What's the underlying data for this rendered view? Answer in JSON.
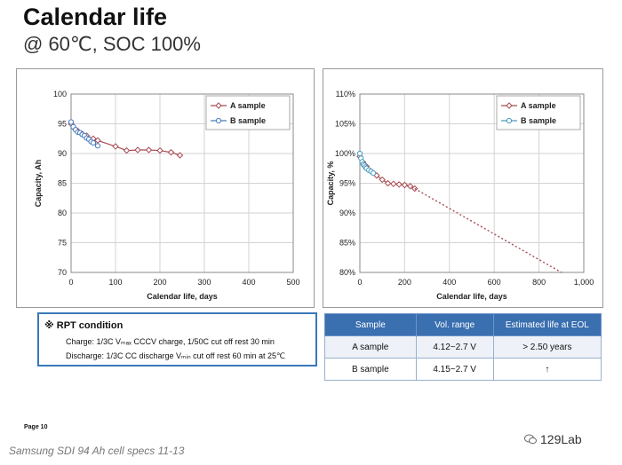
{
  "title": "Calendar life",
  "subtitle": "@ 60℃, SOC 100%",
  "chart_data": [
    {
      "type": "line",
      "title": "",
      "xlabel": "Calendar life, days",
      "ylabel": "Capacity, Ah",
      "xlim": [
        0,
        500
      ],
      "ylim": [
        70,
        100
      ],
      "xticks": [
        "0",
        "100",
        "200",
        "300",
        "400",
        "500"
      ],
      "yticks": [
        "70",
        "75",
        "80",
        "85",
        "90",
        "95",
        "100"
      ],
      "grid": true,
      "legend": "top-right",
      "series": [
        {
          "name": "A sample",
          "color": "#a84b52",
          "marker": "diamond",
          "x": [
            0,
            8,
            15,
            25,
            35,
            50,
            60,
            100,
            125,
            150,
            175,
            200,
            225,
            245
          ],
          "y": [
            95.0,
            94.2,
            93.8,
            93.3,
            93.0,
            92.5,
            92.2,
            91.2,
            90.5,
            90.6,
            90.6,
            90.5,
            90.2,
            89.7
          ]
        },
        {
          "name": "B sample",
          "color": "#4a7cc0",
          "marker": "circle",
          "x": [
            0,
            5,
            10,
            15,
            20,
            25,
            30,
            35,
            40,
            45,
            50,
            60
          ],
          "y": [
            95.3,
            94.5,
            94.0,
            93.6,
            93.5,
            93.2,
            93.0,
            92.6,
            92.4,
            92.0,
            91.8,
            91.3
          ]
        }
      ]
    },
    {
      "type": "line",
      "title": "",
      "xlabel": "Calendar life, days",
      "ylabel": "Capacity, %",
      "xlim": [
        0,
        1000
      ],
      "ylim": [
        80,
        110
      ],
      "xticks": [
        "0",
        "200",
        "400",
        "600",
        "800",
        "1,000"
      ],
      "yticks": [
        "80%",
        "85%",
        "90%",
        "95%",
        "100%",
        "105%",
        "110%"
      ],
      "grid": true,
      "legend": "top-right",
      "series": [
        {
          "name": "A sample",
          "color": "#a84b52",
          "marker": "diamond",
          "x": [
            0,
            15,
            30,
            50,
            75,
            100,
            125,
            150,
            175,
            200,
            225,
            245
          ],
          "y": [
            99.5,
            98.5,
            97.8,
            97.0,
            96.3,
            95.6,
            95.0,
            94.9,
            94.8,
            94.7,
            94.5,
            94.1
          ]
        },
        {
          "name": "B sample",
          "color": "#4a9bc0",
          "marker": "circle",
          "x": [
            0,
            5,
            10,
            15,
            20,
            25,
            30,
            40,
            50,
            60
          ],
          "y": [
            100.0,
            99.2,
            98.6,
            98.2,
            98.0,
            97.7,
            97.5,
            97.2,
            97.0,
            96.7
          ]
        },
        {
          "name": "",
          "color": "#a84b52",
          "style": "dotted",
          "x": [
            245,
            900
          ],
          "y": [
            94.1,
            80.0
          ]
        }
      ]
    }
  ],
  "rpt": {
    "heading": "※ RPT condition",
    "charge": "Charge: 1/3C Vₘₐₓ CCCV charge, 1/50C cut off rest 30 min",
    "discharge": "Discharge: 1/3C CC discharge Vₘᵢₙ cut off  rest 60 min at 25℃"
  },
  "table": {
    "headers": [
      "Sample",
      "Vol. range",
      "Estimated life at EOL"
    ],
    "rows": [
      [
        "A sample",
        "4.12~2.7 V",
        "> 2.50 years"
      ],
      [
        "B sample",
        "4.15~2.7 V",
        "↑"
      ]
    ]
  },
  "page_label": "Page 10",
  "caption": "Samsung SDI 94 Ah cell specs 11-13",
  "logo_text": "129Lab"
}
